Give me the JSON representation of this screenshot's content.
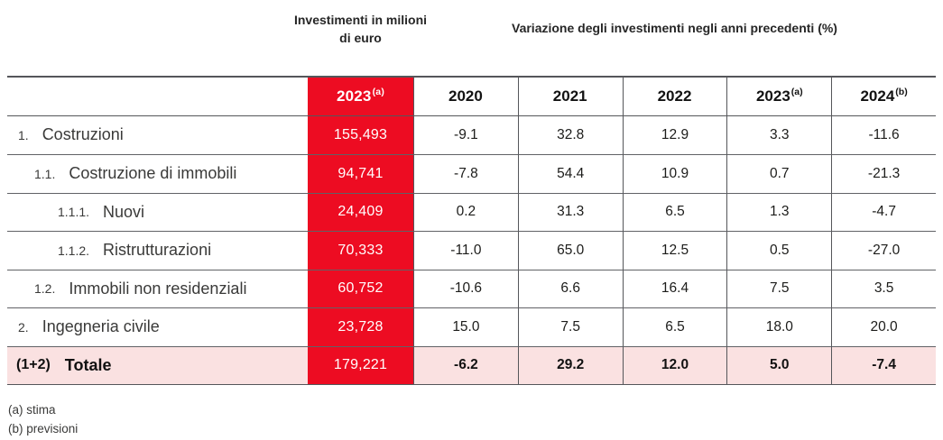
{
  "header": {
    "investments_title": "Investimenti in milioni di euro",
    "variation_title": "Variazione degli investimenti negli anni precedenti (%)"
  },
  "table": {
    "investment_year": {
      "year": "2023",
      "note": "(a)"
    },
    "years": [
      {
        "year": "2020",
        "note": ""
      },
      {
        "year": "2021",
        "note": ""
      },
      {
        "year": "2022",
        "note": ""
      },
      {
        "year": "2023",
        "note": "(a)"
      },
      {
        "year": "2024",
        "note": "(b)"
      }
    ],
    "rows": [
      {
        "num": "1.",
        "label": "Costruzioni",
        "investment": "155,493",
        "values": [
          "-9.1",
          "32.8",
          "12.9",
          "3.3",
          "-11.6"
        ]
      },
      {
        "num": "1.1.",
        "label": "Costruzione di immobili",
        "investment": "94,741",
        "values": [
          "-7.8",
          "54.4",
          "10.9",
          "0.7",
          "-21.3"
        ]
      },
      {
        "num": "1.1.1.",
        "label": "Nuovi",
        "investment": "24,409",
        "values": [
          "0.2",
          "31.3",
          "6.5",
          "1.3",
          "-4.7"
        ]
      },
      {
        "num": "1.1.2.",
        "label": "Ristrutturazioni",
        "investment": "70,333",
        "values": [
          "-11.0",
          "65.0",
          "12.5",
          "0.5",
          "-27.0"
        ]
      },
      {
        "num": "1.2.",
        "label": "Immobili non residenziali",
        "investment": "60,752",
        "values": [
          "-10.6",
          "6.6",
          "16.4",
          "7.5",
          "3.5"
        ]
      },
      {
        "num": "2.",
        "label": "Ingegneria civile",
        "investment": "23,728",
        "values": [
          "15.0",
          "7.5",
          "6.5",
          "18.0",
          "20.0"
        ]
      },
      {
        "num": "(1+2)",
        "label": "Totale",
        "investment": "179,221",
        "values": [
          "-6.2",
          "29.2",
          "12.0",
          "5.0",
          "-7.4"
        ]
      }
    ]
  },
  "footnotes": [
    "(a) stima",
    "(b) previsioni"
  ],
  "colors": {
    "accent_red": "#ED0C22",
    "total_row_pink": "#FAE1E1",
    "border_gray": "#55565A"
  },
  "chart_data": {
    "type": "table",
    "title": "Investimenti in milioni di euro / Variazione degli investimenti negli anni precedenti (%)",
    "columns": [
      "Investimenti 2023(a) (milioni di euro)",
      "Var. % 2020",
      "Var. % 2021",
      "Var. % 2022",
      "Var. % 2023(a)",
      "Var. % 2024(b)"
    ],
    "rows": [
      {
        "label": "1. Costruzioni",
        "values": [
          155493,
          -9.1,
          32.8,
          12.9,
          3.3,
          -11.6
        ]
      },
      {
        "label": "1.1. Costruzione di immobili",
        "values": [
          94741,
          -7.8,
          54.4,
          10.9,
          0.7,
          -21.3
        ]
      },
      {
        "label": "1.1.1. Nuovi",
        "values": [
          24409,
          0.2,
          31.3,
          6.5,
          1.3,
          -4.7
        ]
      },
      {
        "label": "1.1.2. Ristrutturazioni",
        "values": [
          70333,
          -11.0,
          65.0,
          12.5,
          0.5,
          -27.0
        ]
      },
      {
        "label": "1.2. Immobili non residenziali",
        "values": [
          60752,
          -10.6,
          6.6,
          16.4,
          7.5,
          3.5
        ]
      },
      {
        "label": "2. Ingegneria civile",
        "values": [
          23728,
          15.0,
          7.5,
          6.5,
          18.0,
          20.0
        ]
      },
      {
        "label": "(1+2) Totale",
        "values": [
          179221,
          -6.2,
          29.2,
          12.0,
          5.0,
          -7.4
        ]
      }
    ],
    "footnotes": [
      "(a) stima",
      "(b) previsioni"
    ]
  }
}
